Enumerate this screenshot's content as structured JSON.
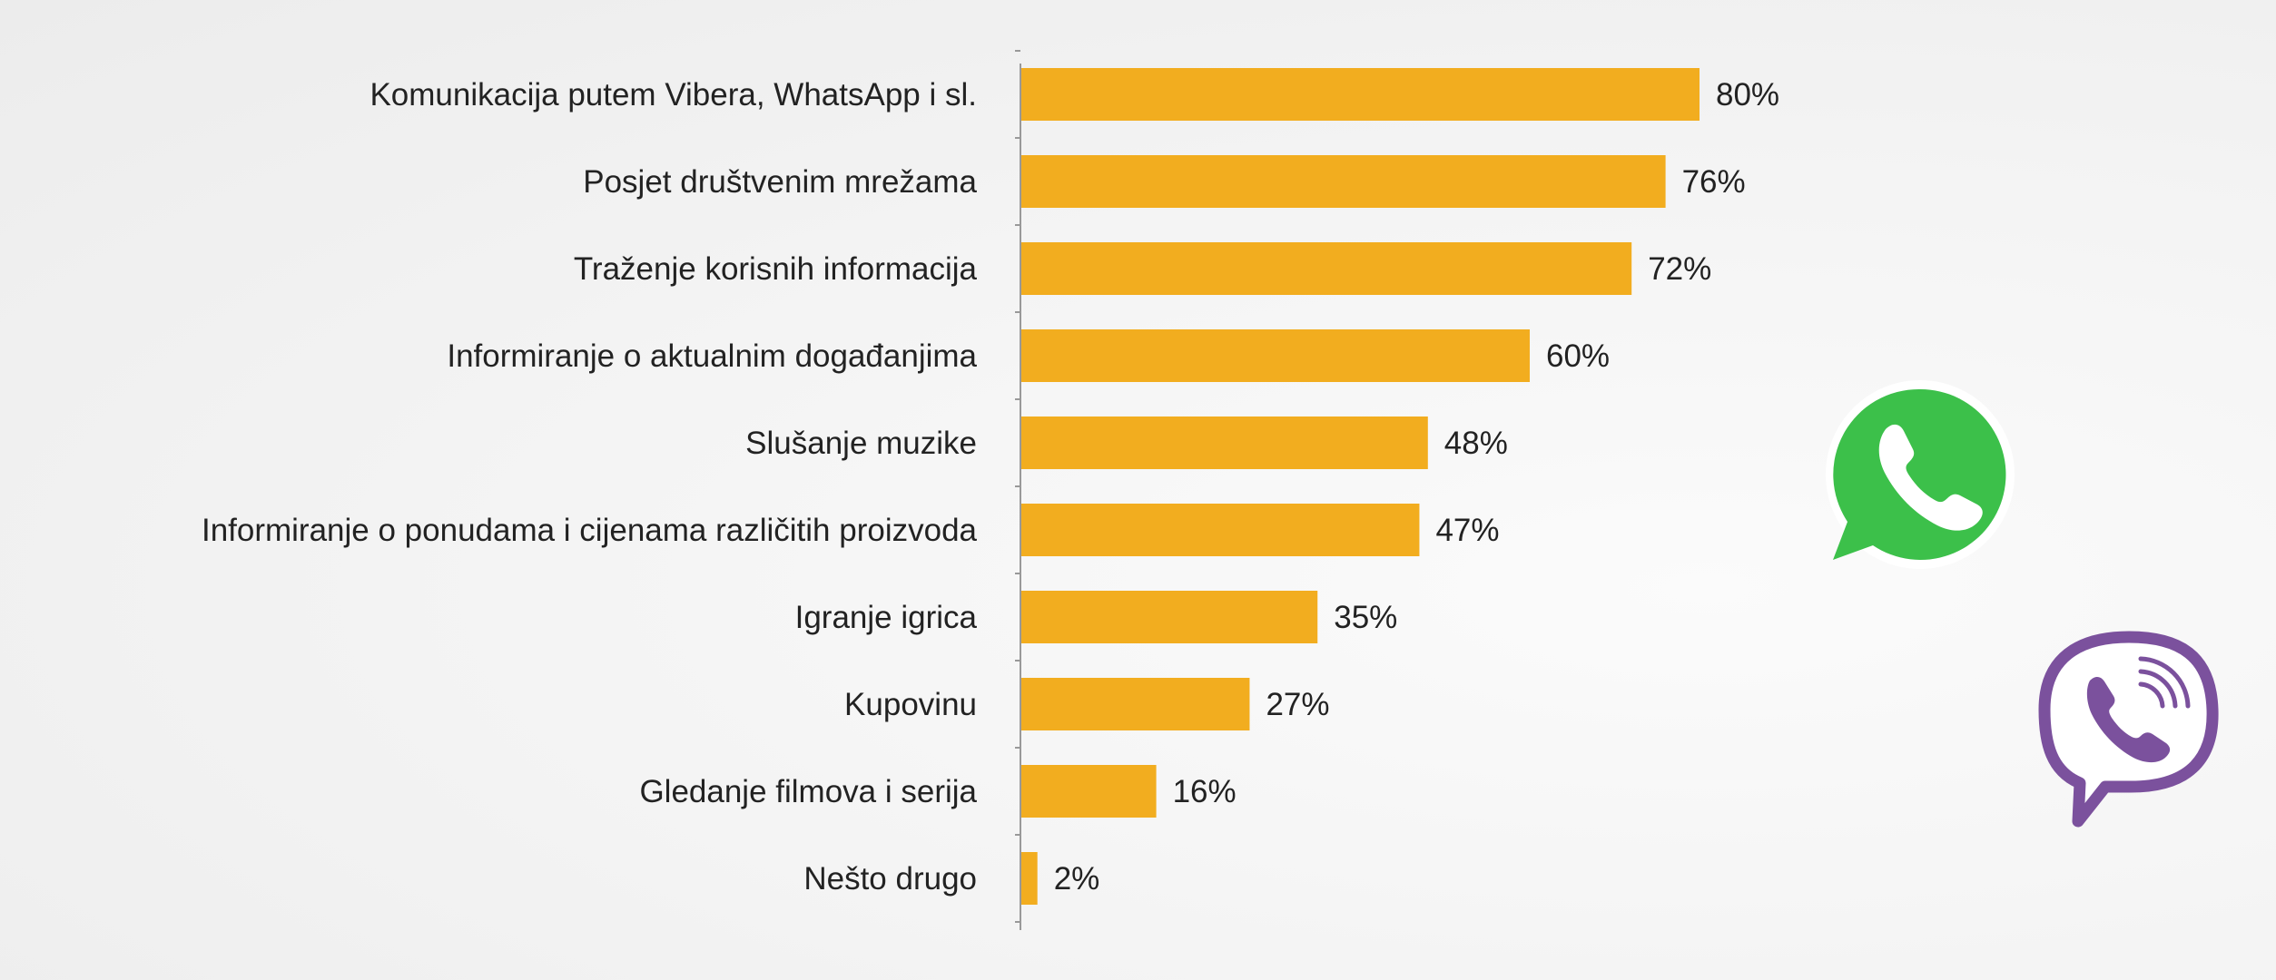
{
  "chart_data": {
    "type": "bar",
    "orientation": "horizontal",
    "title": "",
    "xlabel": "",
    "ylabel": "",
    "xlim": [
      0,
      100
    ],
    "grid": false,
    "categories": [
      "Komunikacija putem Vibera, WhatsApp i sl.",
      "Posjet društvenim mrežama",
      "Traženje korisnih informacija",
      "Informiranje o aktualnim događanjima",
      "Slušanje muzike",
      "Informiranje o ponudama i cijenama različitih proizvoda",
      "Igranje igrica",
      "Kupovinu",
      "Gledanje filmova i serija",
      "Nešto drugo"
    ],
    "values": [
      80,
      76,
      72,
      60,
      48,
      47,
      35,
      27,
      16,
      2
    ],
    "value_labels": [
      "80%",
      "76%",
      "72%",
      "60%",
      "48%",
      "47%",
      "35%",
      "27%",
      "16%",
      "2%"
    ],
    "bar_color": "#f2ad1f"
  },
  "logos": {
    "whatsapp": "whatsapp-logo",
    "viber": "viber-logo",
    "whatsapp_color": "#3cc04a",
    "viber_color": "#7b519d"
  }
}
